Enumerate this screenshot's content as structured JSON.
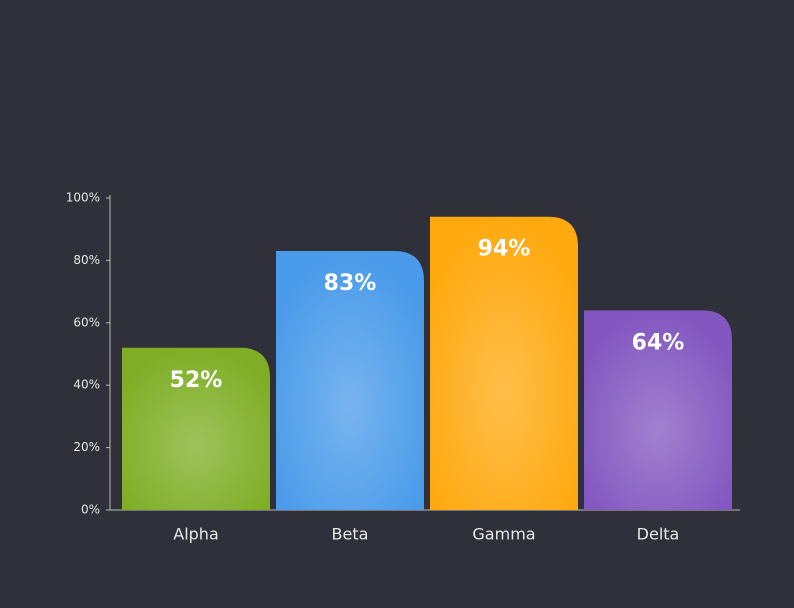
{
  "chart_data": {
    "type": "bar",
    "categories": [
      "Alpha",
      "Beta",
      "Gamma",
      "Delta"
    ],
    "values": [
      52,
      83,
      94,
      64
    ],
    "value_labels": [
      "52%",
      "83%",
      "94%",
      "64%"
    ],
    "colors": [
      "#7fae26",
      "#4a9bea",
      "#ffa90f",
      "#8257c0"
    ],
    "ylim": [
      0,
      100
    ],
    "yticks": [
      {
        "value": 0,
        "label": "0%"
      },
      {
        "value": 20,
        "label": "20%"
      },
      {
        "value": 40,
        "label": "40%"
      },
      {
        "value": 60,
        "label": "60%"
      },
      {
        "value": 80,
        "label": "80%"
      },
      {
        "value": 100,
        "label": "100%"
      }
    ]
  }
}
